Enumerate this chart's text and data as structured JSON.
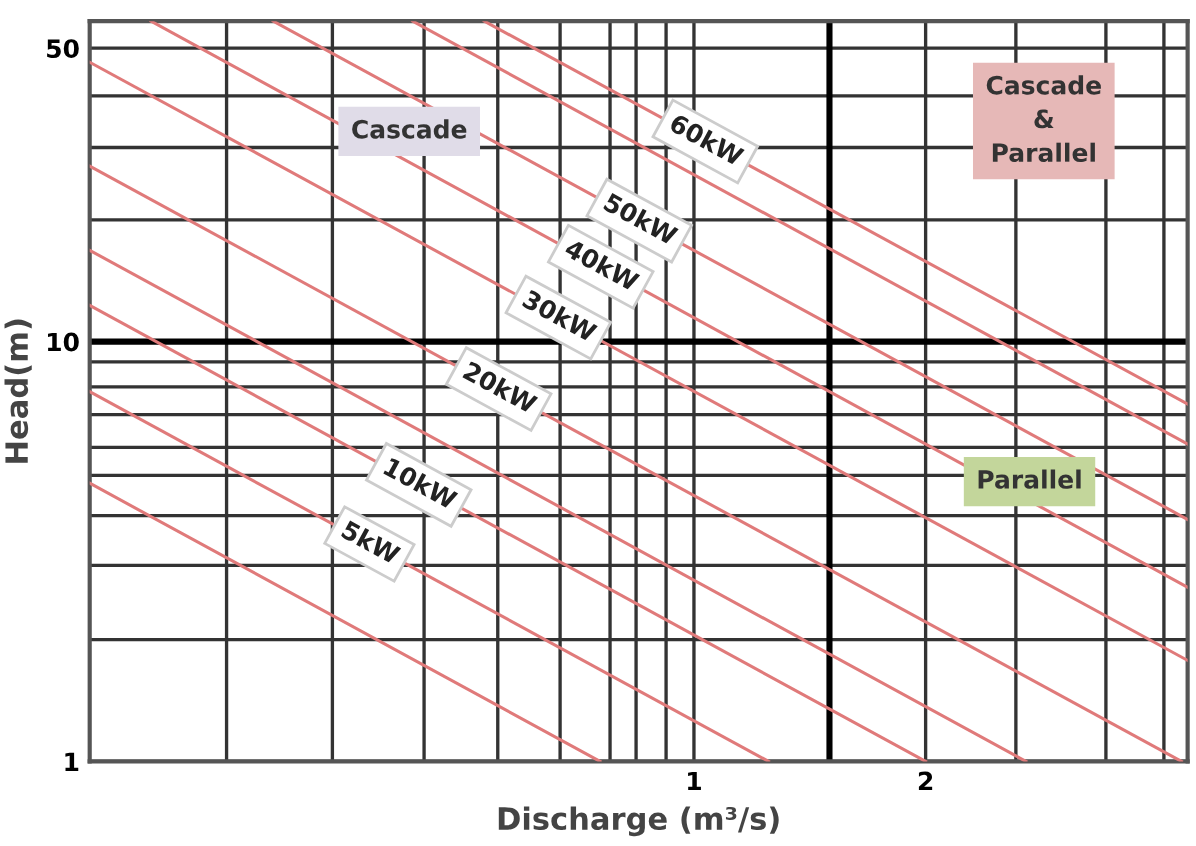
{
  "chart_data": {
    "type": "line",
    "xlabel": "Discharge (m³/s)",
    "ylabel": "Head(m)",
    "log": "xy",
    "xlim": [
      0.164,
      4.38
    ],
    "ylim": [
      1,
      58
    ],
    "xticks": [
      {
        "value": 0.247,
        "label": null
      },
      {
        "value": 0.339,
        "label": null
      },
      {
        "value": 0.446,
        "label": null
      },
      {
        "value": 0.556,
        "label": null
      },
      {
        "value": 0.67,
        "label": null
      },
      {
        "value": 0.778,
        "label": null
      },
      {
        "value": 0.841,
        "label": null
      },
      {
        "value": 0.92,
        "label": null
      },
      1,
      2,
      {
        "value": 2.62,
        "label": null
      },
      {
        "value": 3.43,
        "label": null
      },
      {
        "value": 4.08,
        "label": null
      }
    ],
    "yticks": [
      1,
      {
        "value": 1.95,
        "label": null
      },
      {
        "value": 2.93,
        "label": null
      },
      {
        "value": 3.85,
        "label": null
      },
      {
        "value": 4.8,
        "label": null
      },
      {
        "value": 5.6,
        "label": null
      },
      {
        "value": 6.7,
        "label": null
      },
      {
        "value": 7.8,
        "label": null
      },
      {
        "value": 8.95,
        "label": null
      },
      10,
      {
        "value": 19.5,
        "label": null
      },
      {
        "value": 29,
        "label": null
      },
      {
        "value": 38.5,
        "label": null
      },
      50
    ],
    "grid": true,
    "line_style": "solid",
    "marker": "none",
    "ref_lines": [
      {
        "axis": "x",
        "value": 1.5,
        "color": "#000000"
      },
      {
        "axis": "y",
        "value": 10,
        "color": "#000000"
      }
    ],
    "series": [
      {
        "color": "#e07a7a",
        "x": [
          0.164,
          0.755
        ],
        "values": [
          4.6,
          1
        ]
      },
      {
        "name": "5kW",
        "color": "#e07a7a",
        "x": [
          0.164,
          1.25
        ],
        "values": [
          7.6,
          1
        ]
      },
      {
        "name": "10kW",
        "color": "#e07a7a",
        "x": [
          0.164,
          2.0
        ],
        "values": [
          12.2,
          1
        ]
      },
      {
        "color": "#e07a7a",
        "x": [
          0.164,
          2.7
        ],
        "values": [
          16.5,
          1
        ]
      },
      {
        "name": "20kW",
        "color": "#e07a7a",
        "x": [
          0.164,
          4.3
        ],
        "values": [
          26.2,
          1
        ]
      },
      {
        "name": "30kW",
        "color": "#e07a7a",
        "x": [
          0.164,
          4.38
        ],
        "values": [
          46.3,
          1.74
        ]
      },
      {
        "name": "40kW",
        "color": "#e07a7a",
        "x": [
          0.197,
          4.38
        ],
        "values": [
          58,
          2.6
        ]
      },
      {
        "name": "50kW",
        "color": "#e07a7a",
        "x": [
          0.284,
          4.38
        ],
        "values": [
          58,
          3.77
        ]
      },
      {
        "color": "#e07a7a",
        "x": [
          0.431,
          4.38
        ],
        "values": [
          58,
          5.7
        ]
      },
      {
        "name": "60kW",
        "color": "#e07a7a",
        "x": [
          0.534,
          4.38
        ],
        "values": [
          58,
          7.1
        ]
      }
    ],
    "annotations": [
      "Cascade",
      "Cascade\n&\nParallel",
      "Parallel"
    ]
  }
}
